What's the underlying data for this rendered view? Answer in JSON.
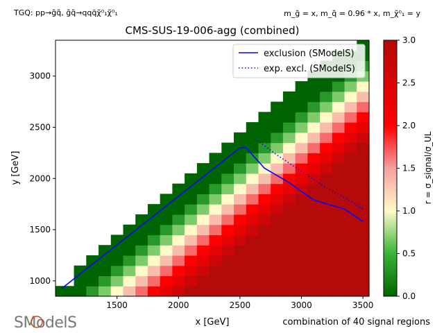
{
  "chart_data": {
    "type": "heatmap",
    "title": "CMS-SUS-19-006-agg (combined)",
    "process_label": "TGQ: pp→g̃q̃, g̃q̃→qqq̄χ̃⁰₁χ̃⁰₁",
    "mass_label": "m_g̃ = x, m_q̃ = 0.96 * x, m_χ̃⁰₁ = y",
    "xlabel": "x [GeV]",
    "ylabel": "y [GeV]",
    "footer_note": "combination of 40 signal regions",
    "xlim": [
      1000,
      3550
    ],
    "ylim": [
      850,
      3350
    ],
    "xticks": [
      1500,
      2000,
      2500,
      3000,
      3500
    ],
    "yticks": [
      1000,
      1500,
      2000,
      2500,
      3000
    ],
    "colorbar": {
      "label": "r = σ_signal/σ_UL",
      "range": [
        0.0,
        3.0
      ],
      "ticks": [
        0.0,
        0.5,
        1.0,
        1.5,
        2.0,
        2.5,
        3.0
      ],
      "colors": {
        "low": "#006400",
        "mid": "#fffac8",
        "high": "#b40a0a"
      }
    },
    "grid": {
      "x_step": 100,
      "y_step": 100,
      "edge_cells": [
        [
          1000,
          900
        ],
        [
          1100,
          900
        ],
        [
          1200,
          1100
        ],
        [
          1300,
          1200
        ],
        [
          1400,
          1300
        ],
        [
          1500,
          1400
        ],
        [
          1600,
          1500
        ],
        [
          1700,
          1600
        ],
        [
          1800,
          1700
        ],
        [
          1900,
          1800
        ],
        [
          2000,
          1900
        ],
        [
          2100,
          2000
        ],
        [
          2200,
          2100
        ],
        [
          2300,
          2200
        ],
        [
          2400,
          2300
        ],
        [
          2500,
          2400
        ],
        [
          2600,
          2500
        ],
        [
          2700,
          2600
        ],
        [
          2800,
          2700
        ],
        [
          2900,
          2800
        ],
        [
          3000,
          2900
        ],
        [
          3100,
          3000
        ],
        [
          3200,
          3100
        ],
        [
          3300,
          3200
        ],
        [
          3400,
          3200
        ],
        [
          3500,
          3300
        ]
      ]
    },
    "series": [
      {
        "name": "exclusion (SModelS)",
        "style": "solid",
        "color": "#0000ff",
        "x": [
          1050,
          2500,
          2550,
          2700,
          2900,
          3100,
          3350,
          3500
        ],
        "y": [
          925,
          2300,
          2300,
          2100,
          1960,
          1790,
          1700,
          1580
        ]
      },
      {
        "name": "exp. excl. (SModelS)",
        "style": "dotted",
        "color": "#0000ff",
        "x": [
          2620,
          2800,
          3000,
          3200,
          3400,
          3500
        ],
        "y": [
          2390,
          2230,
          2070,
          1910,
          1780,
          1700
        ]
      }
    ],
    "legend_position": "top-right"
  },
  "logo": {
    "text": "SModelS"
  }
}
